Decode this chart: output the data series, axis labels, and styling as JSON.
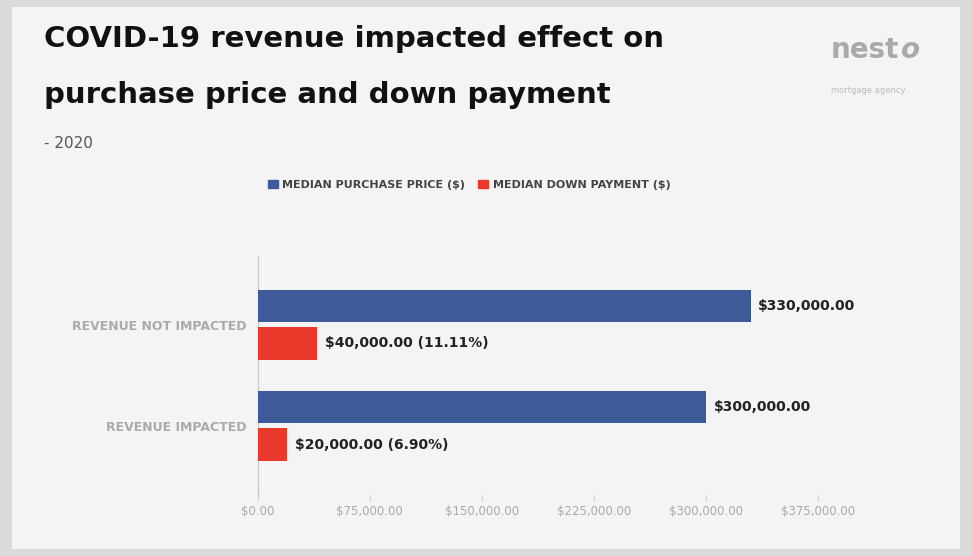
{
  "title_line1": "COVID-19 revenue impacted effect on",
  "title_line2": "purchase price and down payment",
  "subtitle": "- 2020",
  "categories": [
    "REVENUE NOT IMPACTED",
    "REVENUE IMPACTED"
  ],
  "purchase_prices": [
    330000,
    300000
  ],
  "down_payments": [
    40000,
    20000
  ],
  "down_payment_pct": [
    "11.11%",
    "6.90%"
  ],
  "purchase_color": "#3D5A99",
  "down_payment_color": "#E8392A",
  "outer_bg_color": "#DADADA",
  "card_bg_color": "#F4F4F4",
  "plot_bg_color": "#F4F4F4",
  "xlim": [
    0,
    400000
  ],
  "xticks": [
    0,
    75000,
    150000,
    225000,
    300000,
    375000
  ],
  "legend_purchase_label": "MEDIAN PURCHASE PRICE ($)",
  "legend_down_label": "MEDIAN DOWN PAYMENT ($)",
  "title_fontsize": 21,
  "subtitle_fontsize": 11,
  "bar_label_fontsize": 10,
  "legend_fontsize": 8,
  "ytick_fontsize": 9,
  "xtick_fontsize": 8.5,
  "ytick_color": "#AAAAAA",
  "xtick_color": "#AAAAAA",
  "bar_height": 0.32,
  "bar_gap": 0.05,
  "left_spine_color": "#CCCCCC",
  "nesto_color": "#AAAAAA",
  "agency_color": "#BBBBBB"
}
